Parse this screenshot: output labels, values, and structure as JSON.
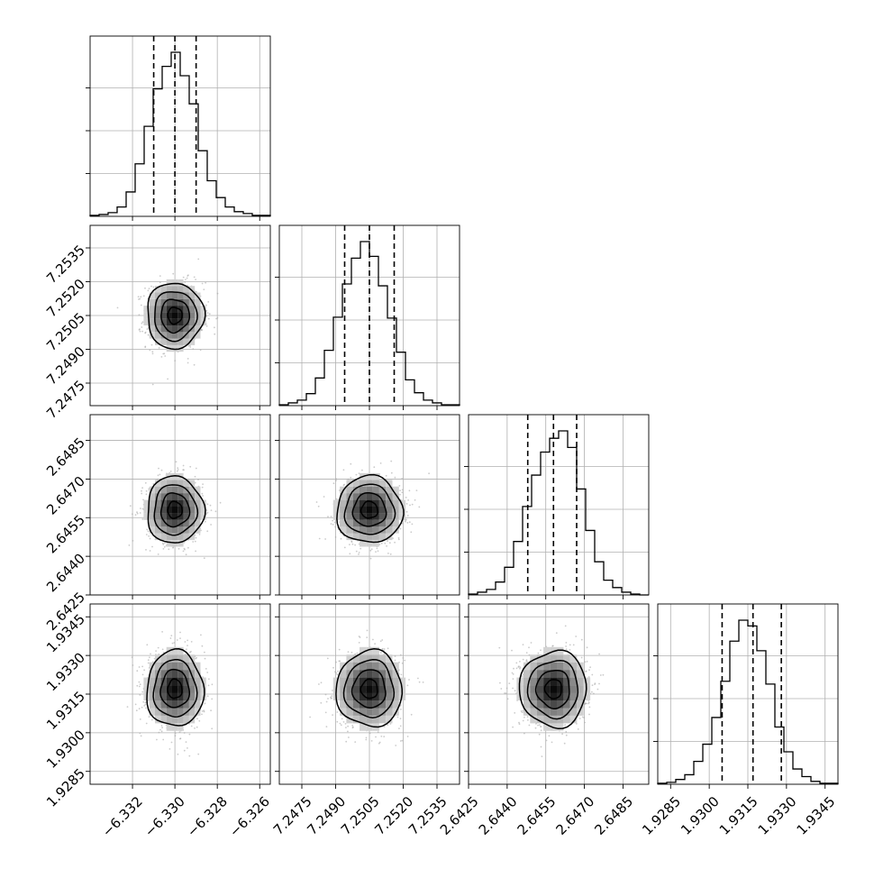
{
  "chart_data": {
    "type": "corner",
    "title": "",
    "parameters": [
      "",
      "",
      "",
      ""
    ],
    "grid": true,
    "ranges": [
      [
        -6.334,
        -6.3255
      ],
      [
        7.2465,
        7.2545
      ],
      [
        2.6425,
        2.6495
      ],
      [
        1.928,
        1.935
      ]
    ],
    "ticks": [
      {
        "values": [
          -6.332,
          -6.33,
          -6.328,
          -6.326
        ],
        "labels": [
          "−6.332",
          "−6.330",
          "−6.328",
          "−6.326"
        ]
      },
      {
        "values": [
          7.2475,
          7.249,
          7.2505,
          7.252,
          7.2535
        ],
        "labels": [
          "7.2475",
          "7.2490",
          "7.2505",
          "7.2520",
          "7.2535"
        ]
      },
      {
        "values": [
          2.6425,
          2.644,
          2.6455,
          2.647,
          2.6485
        ],
        "labels": [
          "2.6425",
          "2.6440",
          "2.6455",
          "2.6470",
          "2.6485"
        ]
      },
      {
        "values": [
          1.9285,
          1.93,
          1.9315,
          1.933,
          1.9345
        ],
        "labels": [
          "1.9285",
          "1.9300",
          "1.9315",
          "1.9330",
          "1.9345"
        ]
      }
    ],
    "quantiles": [
      [
        -6.331,
        -6.33,
        -6.329
      ],
      [
        7.2494,
        7.2505,
        7.2516
      ],
      [
        2.6448,
        2.6458,
        2.6467
      ],
      [
        1.9305,
        1.9317,
        1.9328
      ]
    ],
    "histograms": [
      {
        "bin_edges_start": -6.334,
        "bin_width": 0.000425,
        "counts": [
          1,
          2,
          4,
          10,
          26,
          56,
          96,
          136,
          160,
          175,
          150,
          120,
          70,
          38,
          20,
          10,
          5,
          3,
          1,
          1
        ]
      },
      {
        "bin_edges_start": 7.2465,
        "bin_width": 0.0004,
        "counts": [
          1,
          3,
          6,
          13,
          30,
          60,
          96,
          132,
          160,
          178,
          162,
          130,
          95,
          58,
          28,
          14,
          6,
          3,
          1,
          1
        ]
      },
      {
        "bin_edges_start": 2.6425,
        "bin_width": 0.00035,
        "counts": [
          1,
          3,
          6,
          14,
          30,
          58,
          96,
          130,
          155,
          170,
          178,
          160,
          115,
          70,
          36,
          16,
          8,
          3,
          1,
          0
        ]
      },
      {
        "bin_edges_start": 1.928,
        "bin_width": 0.00035,
        "counts": [
          1,
          2,
          5,
          10,
          24,
          42,
          70,
          108,
          150,
          172,
          166,
          140,
          105,
          60,
          34,
          16,
          8,
          3,
          1,
          1
        ]
      }
    ],
    "means": [
      -6.33,
      7.2505,
      2.6458,
      1.9317
    ],
    "stds": [
      0.00067,
      0.00073,
      0.00065,
      0.00074
    ],
    "correlations": [
      [
        1,
        0,
        0,
        0
      ],
      [
        0,
        1,
        0,
        0
      ],
      [
        0,
        0,
        1,
        0
      ],
      [
        0,
        0,
        0,
        1
      ]
    ]
  }
}
